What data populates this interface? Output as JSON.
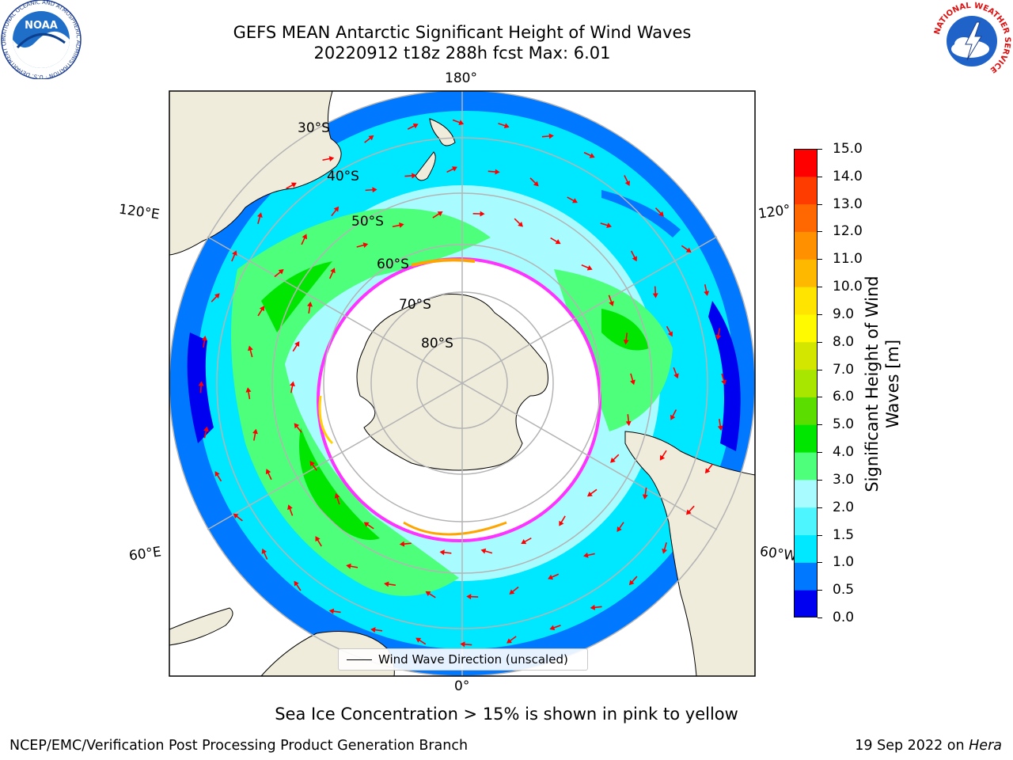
{
  "header": {
    "title_line1": "GEFS MEAN Antarctic Significant Height of Wind Waves",
    "title_line2": "20220912 t18z 288h fcst   Max: 6.01"
  },
  "logos": {
    "noaa_text": "NOAA",
    "noaa_ring_text": "NATIONAL OCEANIC AND ATMOSPHERIC ADMINISTRATION · U.S. DEPARTMENT OF COMMERCE",
    "nws_text": "NATIONAL WEATHER SERVICE"
  },
  "map": {
    "longitude_labels": [
      "180°",
      "120°E",
      "120°",
      "60°E",
      "60°W",
      "0°"
    ],
    "latitude_labels": [
      "30°S",
      "40°S",
      "50°S",
      "60°S",
      "70°S",
      "80°S"
    ],
    "arrow_color": "#ff0000",
    "land_color": "#efecdc",
    "sea_ice_edge_colors": [
      "#ff33ff",
      "#ffa500",
      "#ffd400"
    ]
  },
  "legend": {
    "label": "Wind Wave Direction (unscaled)"
  },
  "colorbar": {
    "title": "Significant Height of Wind Waves [m]",
    "ticks": [
      "15.0",
      "14.0",
      "13.0",
      "12.0",
      "11.0",
      "10.0",
      "9.0",
      "8.0",
      "7.0",
      "6.0",
      "5.0",
      "4.0",
      "3.0",
      "2.0",
      "1.5",
      "1.0",
      "0.5",
      "0.0"
    ],
    "colors": [
      "#0000f0",
      "#0078ff",
      "#00e8ff",
      "#4df5ff",
      "#a8fbff",
      "#4dff7a",
      "#00e600",
      "#5cdd00",
      "#a8e600",
      "#d2e600",
      "#fffa00",
      "#ffe400",
      "#ffb800",
      "#ff9000",
      "#ff6800",
      "#ff3c00",
      "#ff0000"
    ]
  },
  "footer": {
    "note": "Sea Ice Concentration > 15% is shown in pink to yellow",
    "left": "NCEP/EMC/Verification Post Processing Product Generation Branch",
    "right_prefix": "19 Sep 2022 on ",
    "right_host": "Hera"
  }
}
